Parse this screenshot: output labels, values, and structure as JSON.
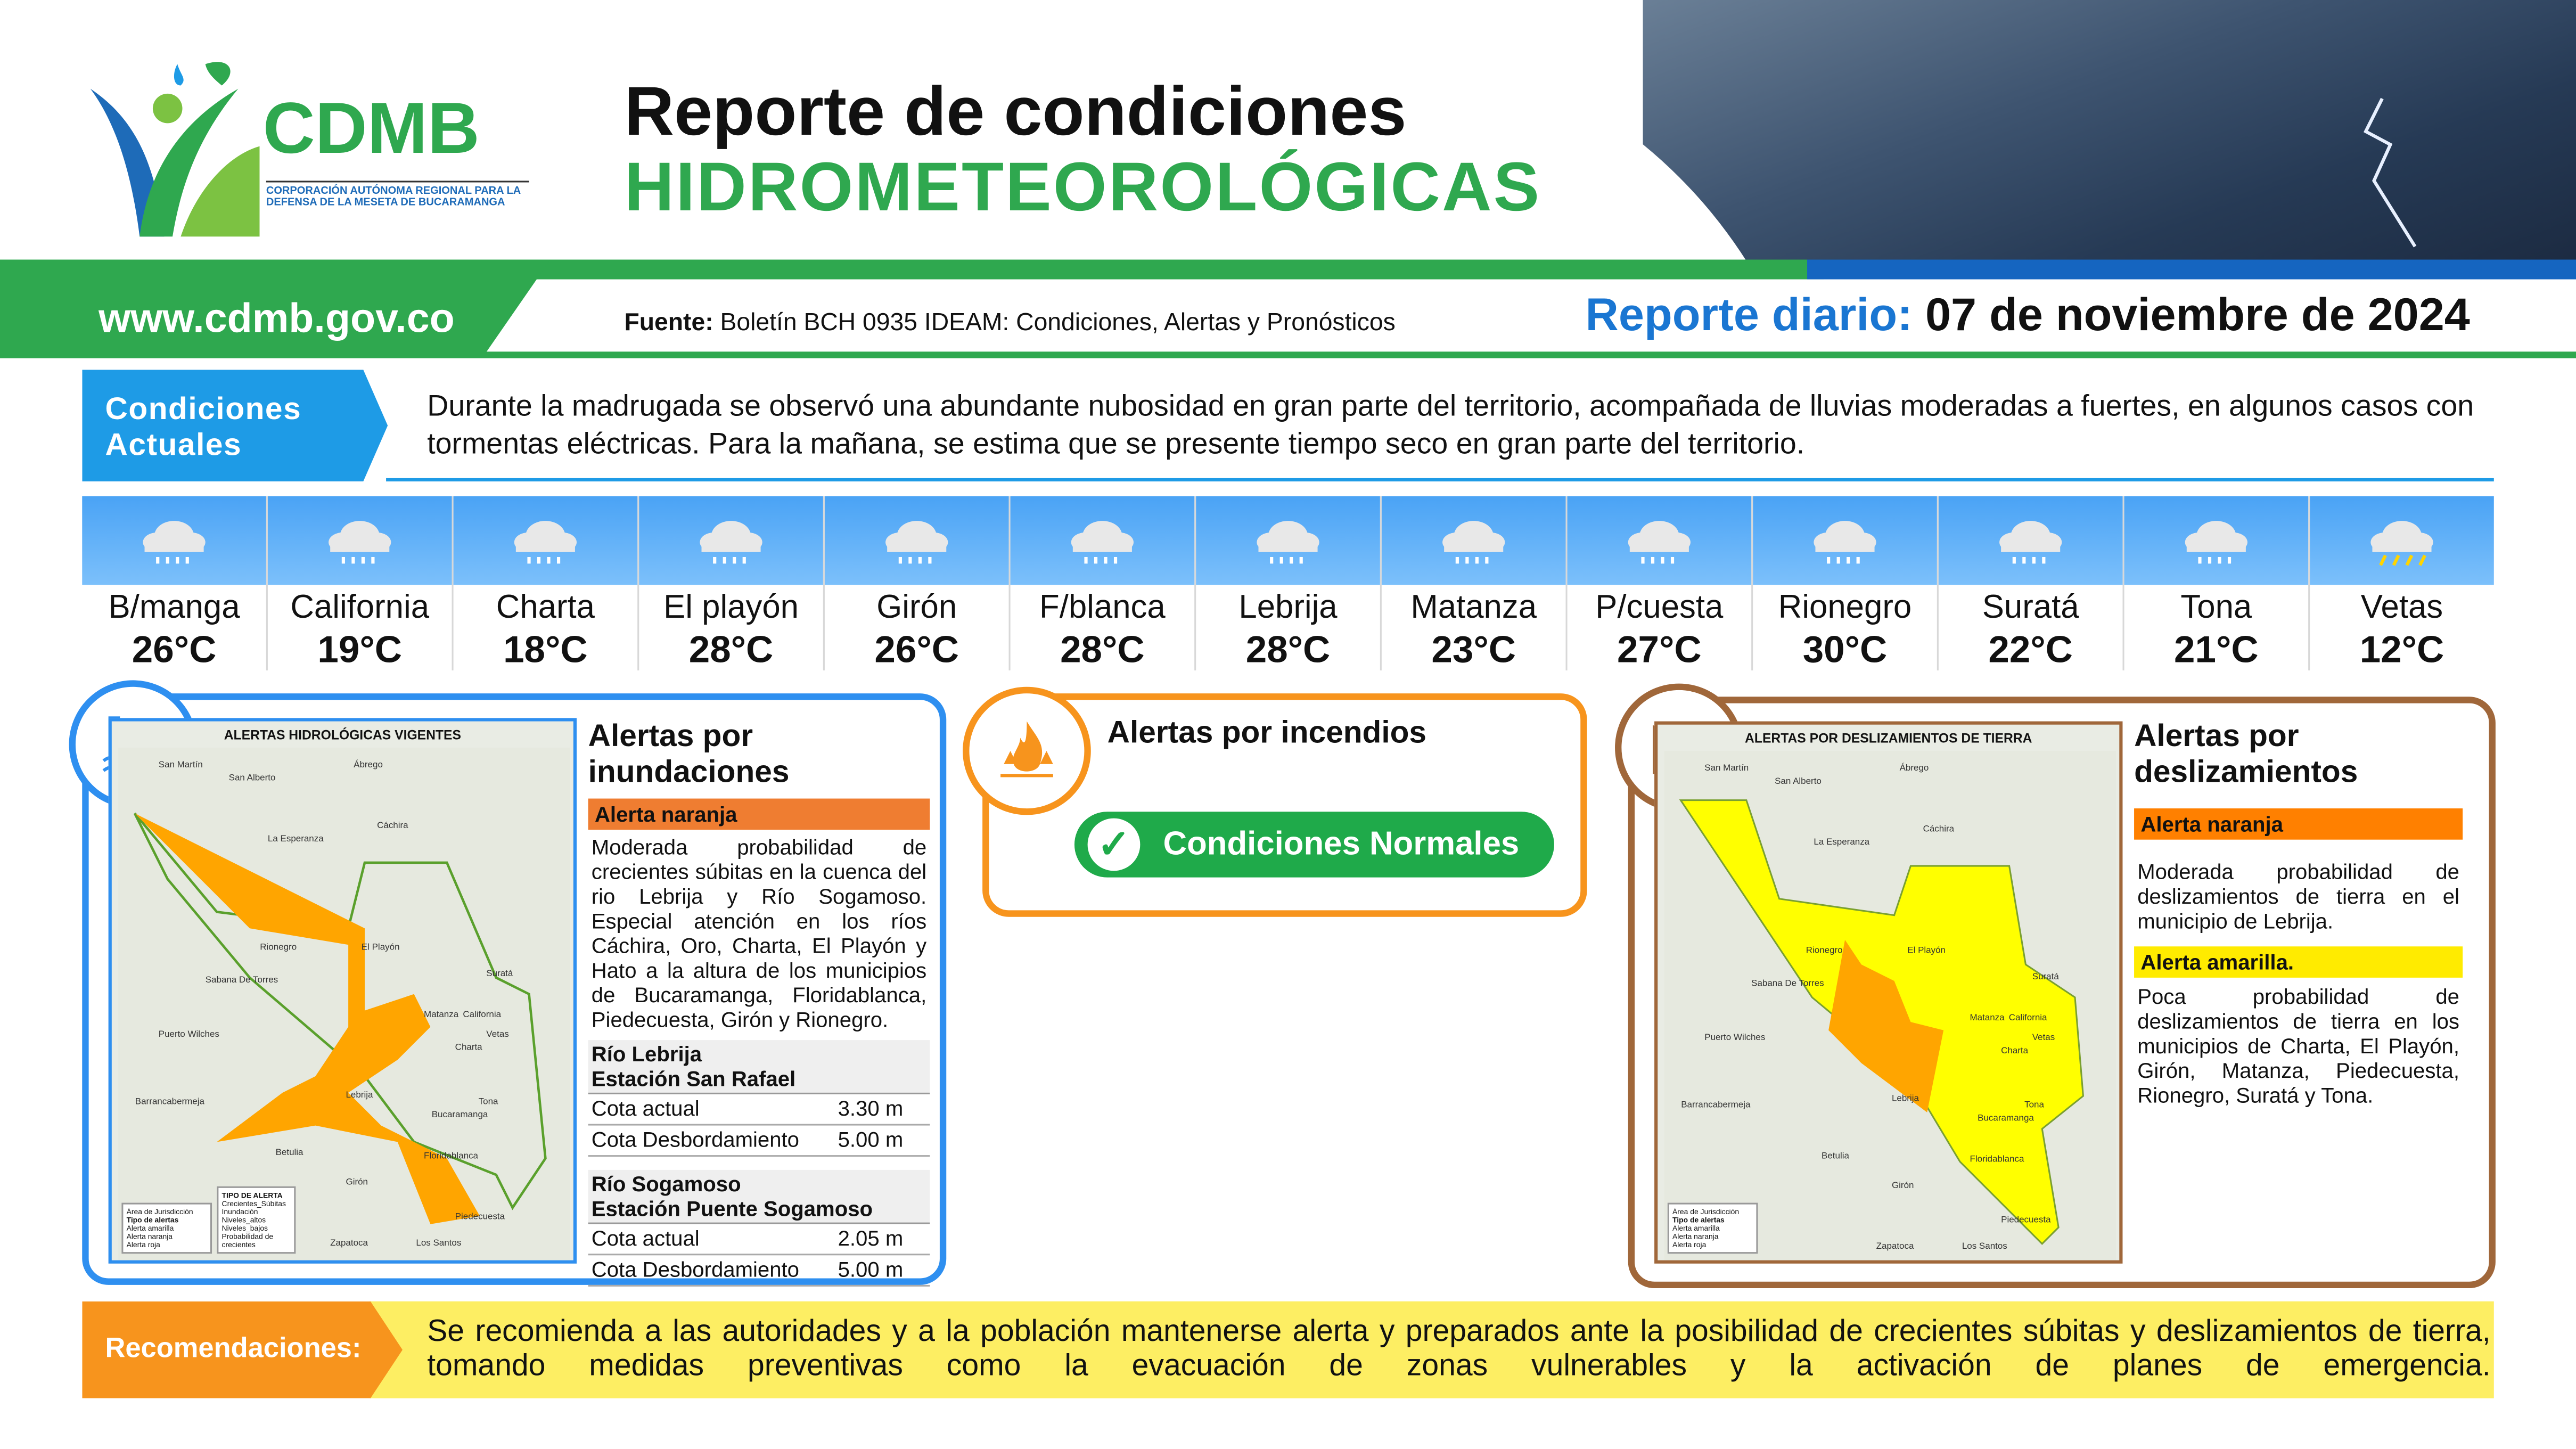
{
  "header": {
    "logo_text": "CDMB",
    "logo_subtitle": "CORPORACIÓN AUTÓNOMA REGIONAL PARA LA DEFENSA DE LA MESETA DE BUCARAMANGA",
    "title_line1": "Reporte de condiciones",
    "title_line2": "HIDROMETEOROLÓGICAS",
    "website": "www.cdmb.gov.co",
    "source_label": "Fuente:",
    "source_text": "Boletín BCH 0935 IDEAM: Condiciones, Alertas y Pronósticos",
    "report_label": "Reporte diario:",
    "report_date": "07 de noviembre de 2024"
  },
  "conditions": {
    "label": "Condiciones Actuales",
    "text": "Durante la madrugada se observó una abundante nubosidad en gran parte del territorio, acompañada de lluvias moderadas a fuertes, en algunos casos con tormentas eléctricas. Para la mañana, se estima que se presente tiempo seco en gran parte del territorio."
  },
  "weather": [
    {
      "name": "B/manga",
      "temp": "26°C",
      "icon": "rain-cloud-icon"
    },
    {
      "name": "California",
      "temp": "19°C",
      "icon": "rain-cloud-icon"
    },
    {
      "name": "Charta",
      "temp": "18°C",
      "icon": "rain-cloud-icon"
    },
    {
      "name": "El playón",
      "temp": "28°C",
      "icon": "rain-cloud-icon"
    },
    {
      "name": "Girón",
      "temp": "26°C",
      "icon": "rain-cloud-icon"
    },
    {
      "name": "F/blanca",
      "temp": "28°C",
      "icon": "rain-cloud-icon"
    },
    {
      "name": "Lebrija",
      "temp": "28°C",
      "icon": "rain-cloud-icon"
    },
    {
      "name": "Matanza",
      "temp": "23°C",
      "icon": "rain-cloud-icon"
    },
    {
      "name": "P/cuesta",
      "temp": "27°C",
      "icon": "rain-cloud-icon"
    },
    {
      "name": "Rionegro",
      "temp": "30°C",
      "icon": "rain-cloud-icon"
    },
    {
      "name": "Suratá",
      "temp": "22°C",
      "icon": "rain-cloud-icon"
    },
    {
      "name": "Tona",
      "temp": "21°C",
      "icon": "rain-cloud-icon"
    },
    {
      "name": "Vetas",
      "temp": "12°C",
      "icon": "thunderstorm-icon"
    }
  ],
  "floods": {
    "title": "Alertas por inundaciones",
    "map_title": "ALERTAS HIDROLÓGICAS VIGENTES",
    "alert_label": "Alerta naranja",
    "alert_color": "#ef7d31",
    "text": "Moderada probabilidad de crecientes súbitas en la cuenca del rio Lebrija y Río Sogamoso. Especial atención en los ríos Cáchira, Oro, Charta, El Playón y Hato a la altura de los municipios de Bucaramanga, Floridablanca, Piedecuesta, Girón y Rionegro.",
    "stations": [
      {
        "river": "Río Lebrija",
        "station": "Estación San Rafael",
        "rows": [
          {
            "label": "Cota actual",
            "value": "3.30 m"
          },
          {
            "label": "Cota Desbordamiento",
            "value": "5.00 m"
          }
        ]
      },
      {
        "river": "Río Sogamoso",
        "station": "Estación Puente Sogamoso",
        "rows": [
          {
            "label": "Cota actual",
            "value": "2.05 m"
          },
          {
            "label": "Cota Desbordamiento",
            "value": "5.00 m"
          }
        ]
      }
    ],
    "legend": {
      "area": "Área de Jurisdicción",
      "types_title": "Tipo de alertas",
      "types": [
        "Alerta amarilla",
        "Alerta naranja",
        "Alerta roja"
      ],
      "alert_title": "TIPO DE ALERTA",
      "alert_types": [
        "Crecientes_Súbitas",
        "Inundación",
        "Niveles_altos",
        "Niveles_bajos",
        "Probabilidad de crecientes"
      ]
    }
  },
  "fires": {
    "title": "Alertas por incendios",
    "status": "Condiciones Normales",
    "status_color": "#1faa4a"
  },
  "landslides": {
    "title": "Alertas por deslizamientos",
    "map_title": "ALERTAS POR DESLIZAMIENTOS DE TIERRA",
    "alerts": [
      {
        "label": "Alerta naranja",
        "color": "#ff8000",
        "text": "Moderada probabilidad de deslizamientos de tierra en el municipio de Lebrija."
      },
      {
        "label": "Alerta amarilla.",
        "color": "#ffeb00",
        "text": "Poca probabilidad de deslizamientos de tierra en los municipios de Charta, El Playón, Girón, Matanza, Piedecuesta, Rionegro, Suratá y Tona."
      }
    ],
    "legend": {
      "area": "Área de Jurisdicción",
      "types_title": "Tipo de alertas",
      "types": [
        "Alerta amarilla",
        "Alerta naranja",
        "Alerta roja"
      ]
    }
  },
  "map_places": [
    "San Martín",
    "San Alberto",
    "Ábrego",
    "Cáchira",
    "La Esperanza",
    "Rionegro",
    "El Playón",
    "Suratá",
    "Sabana De Torres",
    "Puerto Wilches",
    "Matanza",
    "California",
    "Vetas",
    "Charta",
    "Barrancabermeja",
    "Lebrija",
    "Bucaramanga",
    "Tona",
    "Floridablanca",
    "Betulia",
    "Girón",
    "Piedecuesta",
    "Zapatoca",
    "Los Santos"
  ],
  "recommendations": {
    "label": "Recomendaciones:",
    "text": "Se recomienda a las autoridades y a la población mantenerse alerta y preparados ante la posibilidad de crecientes súbitas y deslizamientos de tierra, tomando medidas preventivas como la evacuación de zonas vulnerables y la activación de planes de emergencia."
  }
}
